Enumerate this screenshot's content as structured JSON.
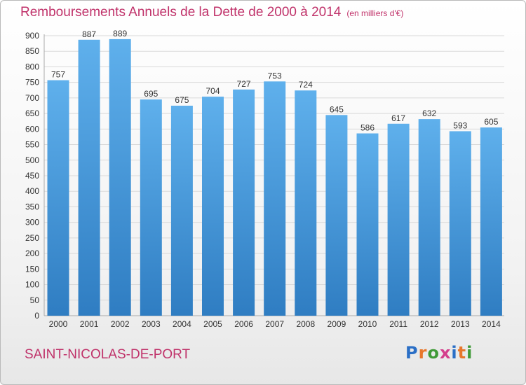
{
  "header": {
    "title": "Remboursements Annuels de la Dette de 2000 à 2014",
    "subtitle": "(en milliers d'€)"
  },
  "footer": {
    "city": "SAINT-NICOLAS-DE-PORT",
    "logo_text": "Proxiti",
    "logo_colors": [
      "#2b6fc6",
      "#e8772b",
      "#3f9a37",
      "#d43e8c",
      "#2b6fc6",
      "#e8772b",
      "#3f9a37"
    ]
  },
  "colors": {
    "bar_top": "#5fb0ec",
    "bar_bottom": "#2f7dc2",
    "title": "#c0326a",
    "grid": "#d9d9d9",
    "axis_text": "#333333"
  },
  "chart_data": {
    "type": "bar",
    "categories": [
      "2000",
      "2001",
      "2002",
      "2003",
      "2004",
      "2005",
      "2006",
      "2007",
      "2008",
      "2009",
      "2010",
      "2011",
      "2012",
      "2013",
      "2014"
    ],
    "values": [
      757,
      887,
      889,
      695,
      675,
      704,
      727,
      753,
      724,
      645,
      586,
      617,
      632,
      593,
      605
    ],
    "data_labels": [
      "757",
      "887",
      "889",
      "695",
      "675",
      "704",
      "727",
      "753",
      "724",
      "645",
      "586",
      "617",
      "632",
      "593",
      "605"
    ],
    "ylim": [
      0,
      900
    ],
    "yticks": [
      "0",
      "50",
      "100",
      "150",
      "200",
      "250",
      "300",
      "350",
      "400",
      "450",
      "500",
      "550",
      "600",
      "650",
      "700",
      "750",
      "800",
      "850",
      "900"
    ],
    "grid": true,
    "legend": "none"
  }
}
